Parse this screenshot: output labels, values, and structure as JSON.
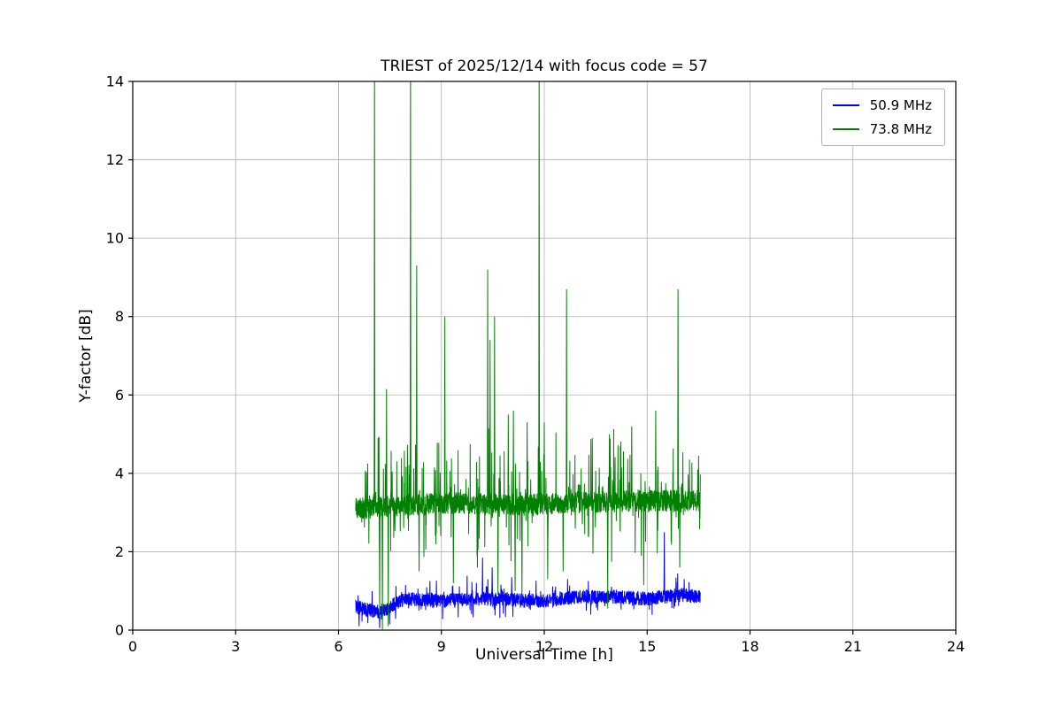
{
  "chart_data": {
    "type": "line",
    "title": "TRIEST of 2025/12/14 with focus code = 57",
    "xlabel": "Universal Time [h]",
    "ylabel": "Y-factor [dB]",
    "xlim": [
      0,
      24
    ],
    "ylim": [
      0,
      14
    ],
    "xticks": [
      0,
      3,
      6,
      9,
      12,
      15,
      18,
      21,
      24
    ],
    "yticks": [
      0,
      2,
      4,
      6,
      8,
      10,
      12,
      14
    ],
    "grid": true,
    "grid_color": "#b0b0b0",
    "axis_color": "#000000",
    "legend_position": "upper right",
    "sample_step_h": 0.005,
    "series": [
      {
        "name": "50.9 MHz",
        "color": "#0000ff",
        "x_range": [
          6.5,
          16.55
        ],
        "baseline": [
          [
            6.5,
            0.6
          ],
          [
            7.0,
            0.5
          ],
          [
            7.25,
            0.45
          ],
          [
            7.6,
            0.65
          ],
          [
            8.0,
            0.8
          ],
          [
            9.0,
            0.75
          ],
          [
            10.0,
            0.8
          ],
          [
            11.0,
            0.78
          ],
          [
            12.0,
            0.75
          ],
          [
            13.0,
            0.85
          ],
          [
            14.0,
            0.85
          ],
          [
            15.0,
            0.8
          ],
          [
            16.0,
            0.9
          ],
          [
            16.55,
            0.85
          ]
        ],
        "noise_amp": 0.18,
        "up_prob": 0.06,
        "up_scale": 0.45,
        "down_prob": 0.06,
        "down_scale": 0.4,
        "spikes": [
          [
            10.2,
            1.85
          ],
          [
            10.48,
            1.6
          ],
          [
            11.05,
            1.35
          ],
          [
            15.5,
            2.5
          ]
        ],
        "dips": [
          [
            6.6,
            0.1
          ],
          [
            7.2,
            0.05
          ]
        ],
        "seed": 12345
      },
      {
        "name": "73.8 MHz",
        "color": "#008000",
        "x_range": [
          6.5,
          16.55
        ],
        "baseline": [
          [
            6.5,
            3.1
          ],
          [
            7.5,
            3.15
          ],
          [
            9.0,
            3.25
          ],
          [
            11.0,
            3.2
          ],
          [
            13.0,
            3.25
          ],
          [
            15.0,
            3.3
          ],
          [
            16.55,
            3.3
          ]
        ],
        "noise_amp": 0.28,
        "up_prob": 0.12,
        "up_scale": 1.8,
        "down_prob": 0.06,
        "down_scale": 1.4,
        "spikes": [
          [
            7.05,
            15
          ],
          [
            7.4,
            6.15
          ],
          [
            8.1,
            15
          ],
          [
            8.28,
            9.3
          ],
          [
            9.1,
            8.0
          ],
          [
            10.35,
            9.2
          ],
          [
            10.42,
            7.4
          ],
          [
            10.55,
            8.0
          ],
          [
            10.95,
            5.5
          ],
          [
            11.1,
            5.6
          ],
          [
            11.5,
            5.3
          ],
          [
            11.85,
            15
          ],
          [
            12.0,
            5.3
          ],
          [
            12.65,
            8.7
          ],
          [
            13.4,
            4.9
          ],
          [
            13.9,
            5.0
          ],
          [
            14.55,
            5.2
          ],
          [
            15.25,
            5.6
          ],
          [
            15.9,
            8.7
          ]
        ],
        "dips": [
          [
            7.2,
            0.3
          ],
          [
            7.28,
            0.02
          ],
          [
            7.45,
            0.1
          ],
          [
            8.35,
            1.5
          ],
          [
            9.35,
            1.2
          ],
          [
            10.05,
            1.6
          ],
          [
            10.65,
            0.9
          ],
          [
            11.15,
            1.0
          ],
          [
            11.35,
            0.85
          ],
          [
            12.1,
            1.3
          ],
          [
            12.55,
            1.5
          ],
          [
            13.85,
            0.55
          ],
          [
            14.9,
            1.15
          ],
          [
            15.95,
            1.6
          ]
        ],
        "seed": 98765
      }
    ]
  }
}
